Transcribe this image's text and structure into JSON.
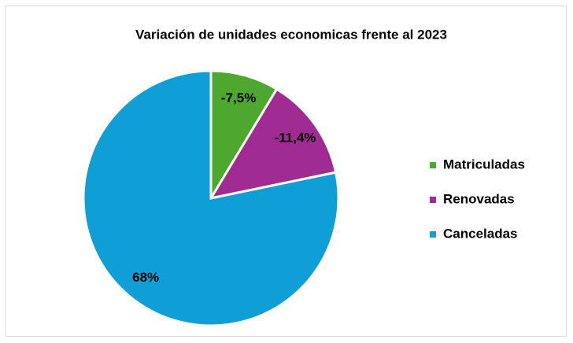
{
  "chart_data": {
    "type": "pie",
    "title": "Variación de unidades economicas frente al 2023",
    "categories": [
      "Matriculadas",
      "Renovadas",
      "Canceladas"
    ],
    "values": [
      -7.5,
      -11.4,
      68
    ],
    "value_labels": [
      "-7,5%",
      "-11,4%",
      "68%"
    ],
    "colors": [
      "#4ea72e",
      "#a02b93",
      "#0f9ed5"
    ],
    "legend": "right"
  }
}
